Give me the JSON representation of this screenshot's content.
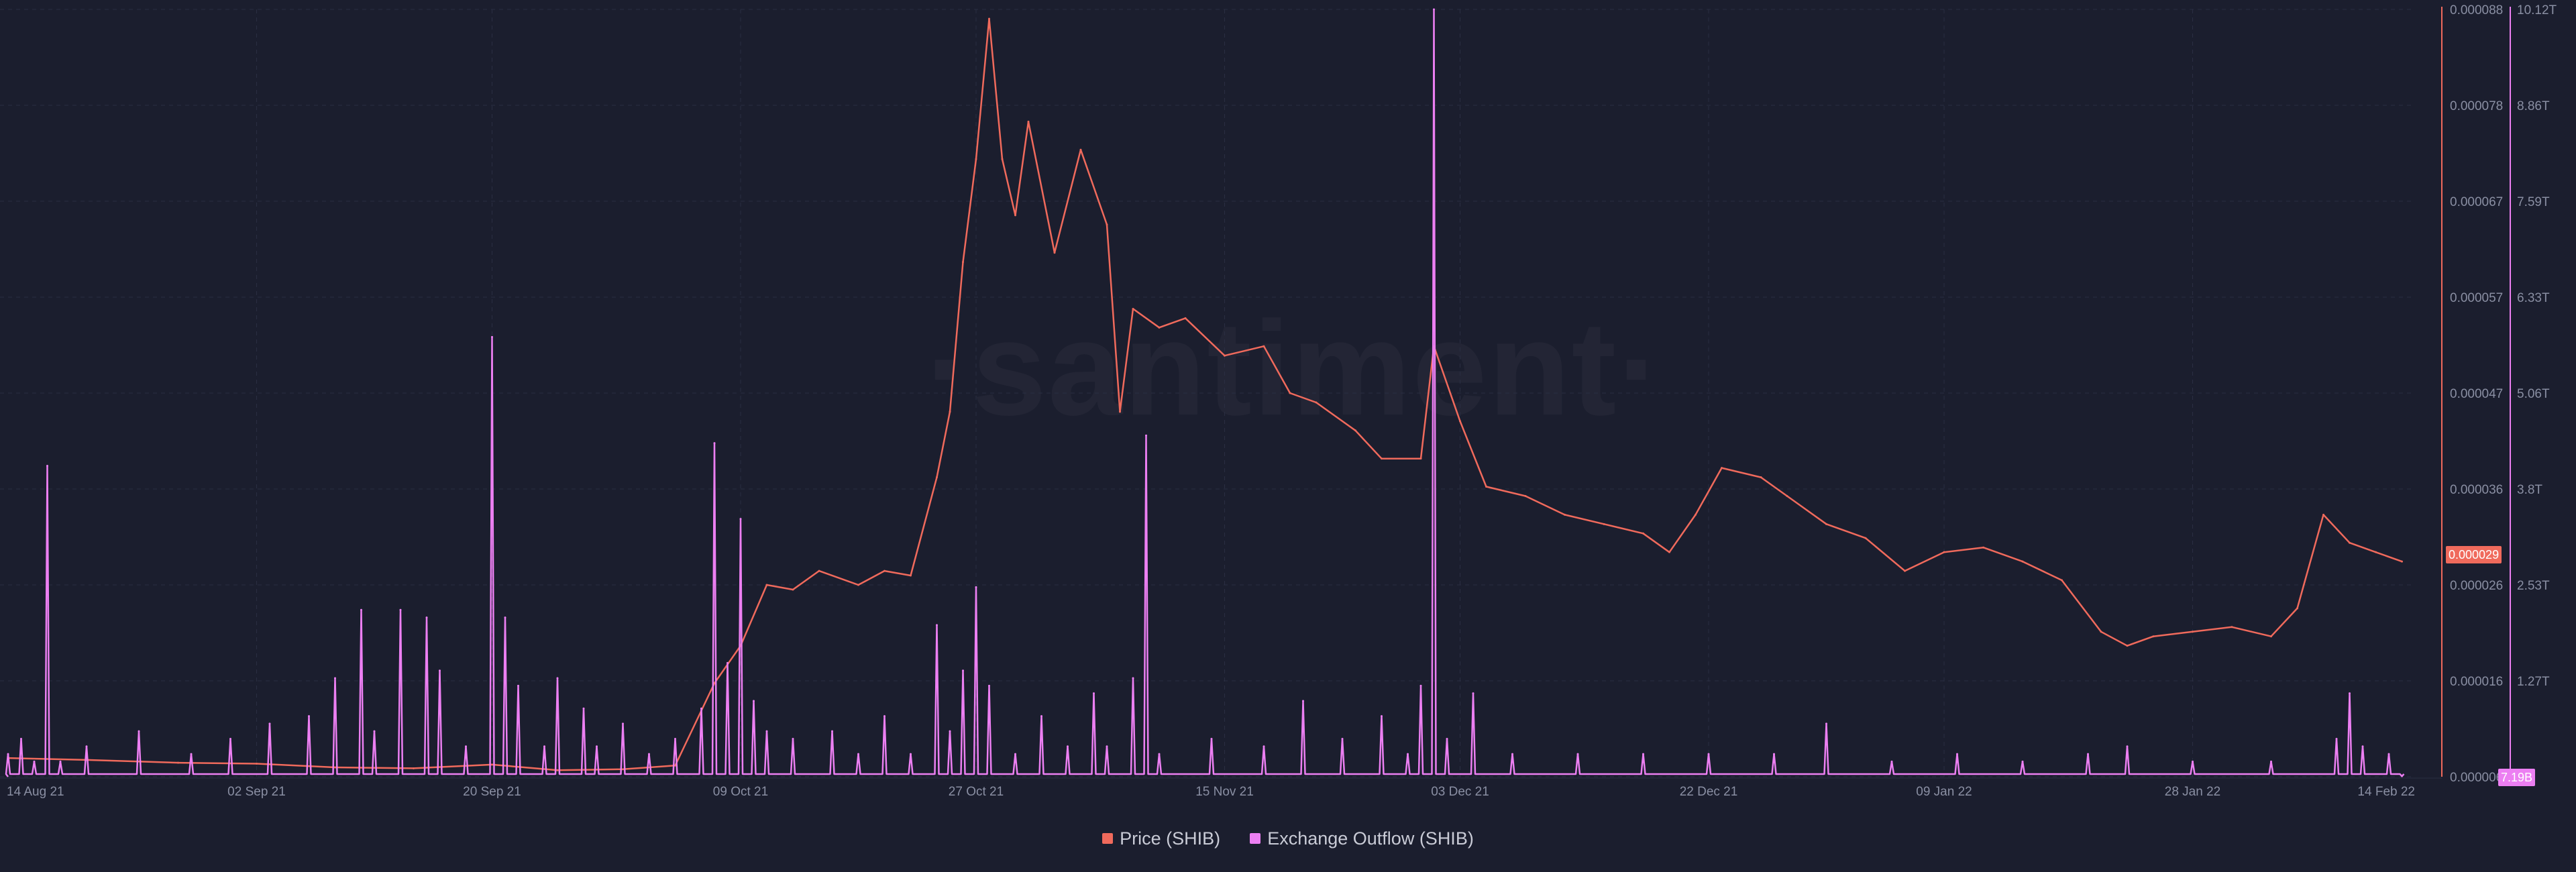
{
  "watermark": "·santiment·",
  "legend": [
    {
      "label": "Price (SHIB)",
      "color": "#f06a5c"
    },
    {
      "label": "Exchange Outflow (SHIB)",
      "color": "#ec7ff2"
    }
  ],
  "current_values": {
    "price": "0.000029",
    "outflow": "7.19B"
  },
  "chart_data": {
    "type": "line",
    "x_ticks": [
      "14 Aug 21",
      "02 Sep 21",
      "20 Sep 21",
      "09 Oct 21",
      "27 Oct 21",
      "15 Nov 21",
      "03 Dec 21",
      "22 Dec 21",
      "09 Jan 22",
      "28 Jan 22",
      "14 Feb 22"
    ],
    "x_range": [
      "14 Aug 21",
      "14 Feb 22"
    ],
    "price_axis": {
      "ticks": [
        "0.000088",
        "0.000078",
        "0.000067",
        "0.000057",
        "0.000047",
        "0.000036",
        "0.000026",
        "0.000016",
        "0.000006"
      ],
      "ylim": [
        6e-06,
        8.8e-05
      ],
      "color": "#f06a5c"
    },
    "outflow_axis": {
      "ticks": [
        "10.12T",
        "8.86T",
        "7.59T",
        "6.33T",
        "5.06T",
        "3.8T",
        "2.53T",
        "1.27T"
      ],
      "ylim": [
        0,
        10.12
      ],
      "unit": "T",
      "color": "#ec7ff2"
    },
    "grid": true,
    "legend_position": "bottom-center",
    "series": [
      {
        "name": "Price (SHIB)",
        "axis": "left",
        "points": [
          [
            "14 Aug 21",
            8e-06
          ],
          [
            "20 Aug 21",
            7.8e-06
          ],
          [
            "27 Aug 21",
            7.5e-06
          ],
          [
            "02 Sep 21",
            7.4e-06
          ],
          [
            "08 Sep 21",
            7e-06
          ],
          [
            "14 Sep 21",
            6.9e-06
          ],
          [
            "20 Sep 21",
            7.3e-06
          ],
          [
            "25 Sep 21",
            6.7e-06
          ],
          [
            "30 Sep 21",
            6.8e-06
          ],
          [
            "04 Oct 21",
            7.2e-06
          ],
          [
            "07 Oct 21",
            1.6e-05
          ],
          [
            "09 Oct 21",
            2e-05
          ],
          [
            "11 Oct 21",
            2.65e-05
          ],
          [
            "13 Oct 21",
            2.6e-05
          ],
          [
            "15 Oct 21",
            2.8e-05
          ],
          [
            "18 Oct 21",
            2.65e-05
          ],
          [
            "20 Oct 21",
            2.8e-05
          ],
          [
            "22 Oct 21",
            2.75e-05
          ],
          [
            "24 Oct 21",
            3.8e-05
          ],
          [
            "25 Oct 21",
            4.5e-05
          ],
          [
            "26 Oct 21",
            6.1e-05
          ],
          [
            "27 Oct 21",
            7.2e-05
          ],
          [
            "28 Oct 21",
            8.7e-05
          ],
          [
            "29 Oct 21",
            7.2e-05
          ],
          [
            "30 Oct 21",
            6.6e-05
          ],
          [
            "31 Oct 21",
            7.6e-05
          ],
          [
            "02 Nov 21",
            6.2e-05
          ],
          [
            "04 Nov 21",
            7.3e-05
          ],
          [
            "06 Nov 21",
            6.5e-05
          ],
          [
            "07 Nov 21",
            4.5e-05
          ],
          [
            "08 Nov 21",
            5.6e-05
          ],
          [
            "10 Nov 21",
            5.4e-05
          ],
          [
            "12 Nov 21",
            5.5e-05
          ],
          [
            "15 Nov 21",
            5.1e-05
          ],
          [
            "18 Nov 21",
            5.2e-05
          ],
          [
            "20 Nov 21",
            4.7e-05
          ],
          [
            "22 Nov 21",
            4.6e-05
          ],
          [
            "25 Nov 21",
            4.3e-05
          ],
          [
            "27 Nov 21",
            4e-05
          ],
          [
            "30 Nov 21",
            4e-05
          ],
          [
            "01 Dec 21",
            5.2e-05
          ],
          [
            "03 Dec 21",
            4.4e-05
          ],
          [
            "05 Dec 21",
            3.7e-05
          ],
          [
            "08 Dec 21",
            3.6e-05
          ],
          [
            "11 Dec 21",
            3.4e-05
          ],
          [
            "14 Dec 21",
            3.3e-05
          ],
          [
            "17 Dec 21",
            3.2e-05
          ],
          [
            "19 Dec 21",
            3e-05
          ],
          [
            "21 Dec 21",
            3.4e-05
          ],
          [
            "23 Dec 21",
            3.9e-05
          ],
          [
            "26 Dec 21",
            3.8e-05
          ],
          [
            "28 Dec 21",
            3.6e-05
          ],
          [
            "31 Dec 21",
            3.3e-05
          ],
          [
            "03 Jan 22",
            3.15e-05
          ],
          [
            "06 Jan 22",
            2.8e-05
          ],
          [
            "09 Jan 22",
            3e-05
          ],
          [
            "12 Jan 22",
            3.05e-05
          ],
          [
            "15 Jan 22",
            2.9e-05
          ],
          [
            "18 Jan 22",
            2.7e-05
          ],
          [
            "21 Jan 22",
            2.15e-05
          ],
          [
            "23 Jan 22",
            2e-05
          ],
          [
            "25 Jan 22",
            2.1e-05
          ],
          [
            "28 Jan 22",
            2.15e-05
          ],
          [
            "31 Jan 22",
            2.2e-05
          ],
          [
            "03 Feb 22",
            2.1e-05
          ],
          [
            "05 Feb 22",
            2.4e-05
          ],
          [
            "07 Feb 22",
            3.4e-05
          ],
          [
            "09 Feb 22",
            3.1e-05
          ],
          [
            "11 Feb 22",
            3e-05
          ],
          [
            "13 Feb 22",
            2.9e-05
          ]
        ]
      },
      {
        "name": "Exchange Outflow (SHIB)",
        "axis": "right",
        "points": [
          [
            "14 Aug 21",
            0.3
          ],
          [
            "15 Aug 21",
            0.5
          ],
          [
            "16 Aug 21",
            0.2
          ],
          [
            "17 Aug 21",
            4.1
          ],
          [
            "18 Aug 21",
            0.2
          ],
          [
            "20 Aug 21",
            0.4
          ],
          [
            "24 Aug 21",
            0.6
          ],
          [
            "28 Aug 21",
            0.3
          ],
          [
            "31 Aug 21",
            0.5
          ],
          [
            "03 Sep 21",
            0.7
          ],
          [
            "06 Sep 21",
            0.8
          ],
          [
            "08 Sep 21",
            1.3
          ],
          [
            "10 Sep 21",
            2.2
          ],
          [
            "11 Sep 21",
            0.6
          ],
          [
            "13 Sep 21",
            2.2
          ],
          [
            "15 Sep 21",
            2.1
          ],
          [
            "16 Sep 21",
            1.4
          ],
          [
            "18 Sep 21",
            0.4
          ],
          [
            "20 Sep 21",
            5.8
          ],
          [
            "21 Sep 21",
            2.1
          ],
          [
            "22 Sep 21",
            1.2
          ],
          [
            "24 Sep 21",
            0.4
          ],
          [
            "25 Sep 21",
            1.3
          ],
          [
            "27 Sep 21",
            0.9
          ],
          [
            "28 Sep 21",
            0.4
          ],
          [
            "30 Sep 21",
            0.7
          ],
          [
            "02 Oct 21",
            0.3
          ],
          [
            "04 Oct 21",
            0.5
          ],
          [
            "06 Oct 21",
            0.9
          ],
          [
            "07 Oct 21",
            4.4
          ],
          [
            "08 Oct 21",
            1.5
          ],
          [
            "09 Oct 21",
            3.4
          ],
          [
            "10 Oct 21",
            1.0
          ],
          [
            "11 Oct 21",
            0.6
          ],
          [
            "13 Oct 21",
            0.5
          ],
          [
            "16 Oct 21",
            0.6
          ],
          [
            "18 Oct 21",
            0.3
          ],
          [
            "20 Oct 21",
            0.8
          ],
          [
            "22 Oct 21",
            0.3
          ],
          [
            "24 Oct 21",
            2.0
          ],
          [
            "25 Oct 21",
            0.6
          ],
          [
            "26 Oct 21",
            1.4
          ],
          [
            "27 Oct 21",
            2.5
          ],
          [
            "28 Oct 21",
            1.2
          ],
          [
            "30 Oct 21",
            0.3
          ],
          [
            "01 Nov 21",
            0.8
          ],
          [
            "03 Nov 21",
            0.4
          ],
          [
            "05 Nov 21",
            1.1
          ],
          [
            "06 Nov 21",
            0.4
          ],
          [
            "08 Nov 21",
            1.3
          ],
          [
            "09 Nov 21",
            4.5
          ],
          [
            "10 Nov 21",
            0.3
          ],
          [
            "14 Nov 21",
            0.5
          ],
          [
            "18 Nov 21",
            0.4
          ],
          [
            "21 Nov 21",
            1.0
          ],
          [
            "24 Nov 21",
            0.5
          ],
          [
            "27 Nov 21",
            0.8
          ],
          [
            "29 Nov 21",
            0.3
          ],
          [
            "30 Nov 21",
            1.2
          ],
          [
            "01 Dec 21",
            10.12
          ],
          [
            "02 Dec 21",
            0.5
          ],
          [
            "04 Dec 21",
            1.1
          ],
          [
            "07 Dec 21",
            0.3
          ],
          [
            "12 Dec 21",
            0.3
          ],
          [
            "17 Dec 21",
            0.3
          ],
          [
            "22 Dec 21",
            0.3
          ],
          [
            "27 Dec 21",
            0.3
          ],
          [
            "31 Dec 21",
            0.7
          ],
          [
            "05 Jan 22",
            0.2
          ],
          [
            "10 Jan 22",
            0.3
          ],
          [
            "15 Jan 22",
            0.2
          ],
          [
            "20 Jan 22",
            0.3
          ],
          [
            "23 Jan 22",
            0.4
          ],
          [
            "28 Jan 22",
            0.2
          ],
          [
            "03 Feb 22",
            0.2
          ],
          [
            "08 Feb 22",
            0.5
          ],
          [
            "09 Feb 22",
            1.1
          ],
          [
            "10 Feb 22",
            0.4
          ],
          [
            "12 Feb 22",
            0.3
          ],
          [
            "13 Feb 22",
            0.00719
          ]
        ]
      }
    ]
  }
}
